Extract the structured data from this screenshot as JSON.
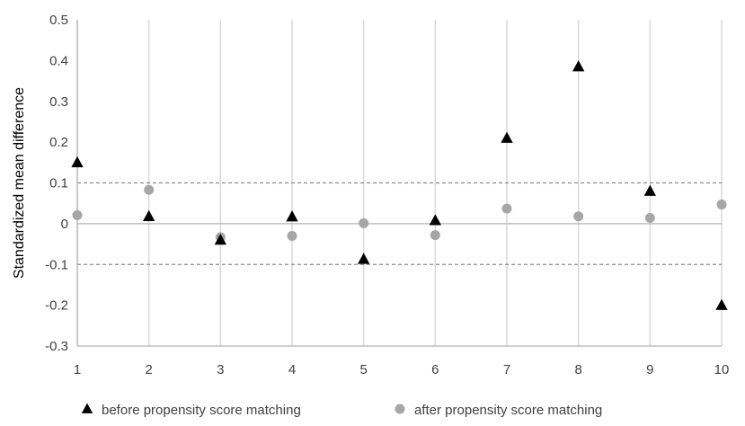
{
  "chart_data": {
    "type": "scatter",
    "title": "",
    "xlabel": "",
    "ylabel": "Standardized mean difference",
    "x": [
      1,
      2,
      3,
      4,
      5,
      6,
      7,
      8,
      9,
      10
    ],
    "xticks": [
      "1",
      "2",
      "3",
      "4",
      "5",
      "6",
      "7",
      "8",
      "9",
      "10"
    ],
    "xlim": [
      1,
      10
    ],
    "ylim": [
      -0.3,
      0.5
    ],
    "yticks": [
      "-0.3",
      "-0.2",
      "-0.1",
      "0",
      "0.1",
      "0.2",
      "0.3",
      "0.4",
      "0.5"
    ],
    "ytick_values": [
      -0.3,
      -0.2,
      -0.1,
      0,
      0.1,
      0.2,
      0.3,
      0.4,
      0.5
    ],
    "grid": "vertical",
    "reference_lines": [
      0.1,
      -0.1
    ],
    "legend_position": "bottom",
    "series": [
      {
        "name": "before propensity score matching",
        "marker": "triangle",
        "color": "#000000",
        "values": [
          0.15,
          0.018,
          -0.04,
          0.017,
          -0.087,
          0.008,
          0.21,
          0.385,
          0.08,
          -0.2
        ]
      },
      {
        "name": "after propensity score matching",
        "marker": "circle",
        "color": "#a6a6a6",
        "values": [
          0.021,
          0.083,
          -0.033,
          -0.03,
          0.001,
          -0.028,
          0.037,
          0.018,
          0.014,
          0.047
        ]
      }
    ]
  }
}
